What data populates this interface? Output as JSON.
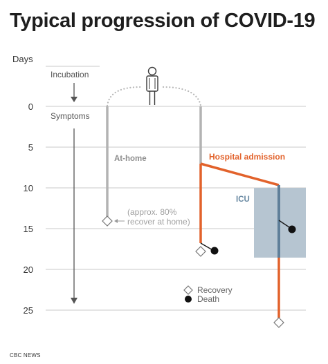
{
  "title": "Typical progression of COVID-19",
  "axis_label": "Days",
  "day_ticks": [
    "0",
    "5",
    "10",
    "15",
    "20",
    "25"
  ],
  "stages": {
    "incubation": "Incubation",
    "symptoms": "Symptoms"
  },
  "paths": {
    "at_home": "At-home",
    "at_home_note_line1": "(approx. 80%",
    "at_home_note_line2": "recover at home)",
    "hospital_admission": "Hospital admission",
    "icu": "ICU"
  },
  "legend": {
    "recovery": "Recovery",
    "death": "Death"
  },
  "source": "CBC NEWS",
  "colors": {
    "hospital": "#e2622b",
    "at_home": "#b3b3b3",
    "icu_box": "#b6c5d1",
    "icu_line": "#5f7f99",
    "gridline": "#c8c8c8",
    "text": "#333333"
  },
  "icons": [
    "person-icon",
    "recovery-diamond-icon",
    "death-dot-icon",
    "arrow-down-icon"
  ]
}
